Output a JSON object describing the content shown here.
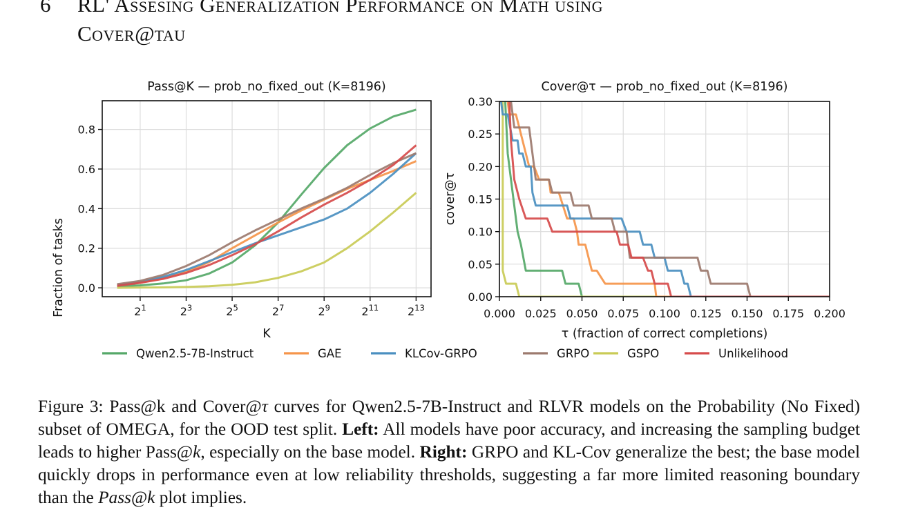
{
  "section": {
    "number": "6",
    "title_line1": "RL' Assesing Generalization Performance on Math using",
    "title_line2_a": "Cover",
    "title_line2_at": "@",
    "title_line2_b": "tau"
  },
  "legend": [
    {
      "name": "Qwen2.5-7B-Instruct",
      "color": "#55a868"
    },
    {
      "name": "GAE",
      "color": "#f5954a"
    },
    {
      "name": "KLCov-GRPO",
      "color": "#4a8fc0"
    },
    {
      "name": "GRPO",
      "color": "#9c7a6e"
    },
    {
      "name": "GSPO",
      "color": "#c9cb56"
    },
    {
      "name": "Unlikelihood",
      "color": "#d64b4b"
    }
  ],
  "chart_data": [
    {
      "type": "line",
      "title": "Pass@K — prob_no_fixed_out (K=8196)",
      "xlabel": "K",
      "ylabel": "Fraction of tasks",
      "xscale": "log2",
      "x_log2": [
        0,
        1,
        2,
        3,
        4,
        5,
        6,
        7,
        8,
        9,
        10,
        11,
        12,
        13
      ],
      "xticks": [
        1,
        3,
        5,
        7,
        9,
        11,
        13
      ],
      "xtick_labels": [
        "2^1",
        "2^3",
        "2^5",
        "2^7",
        "2^9",
        "2^11",
        "2^13"
      ],
      "yticks": [
        0.0,
        0.2,
        0.4,
        0.6,
        0.8
      ],
      "ytick_labels": [
        "0.0",
        "0.2",
        "0.4",
        "0.6",
        "0.8"
      ],
      "xlim_log2": [
        -0.65,
        13.65
      ],
      "ylim": [
        -0.045,
        0.945
      ],
      "grid": true,
      "series": [
        {
          "name": "Qwen2.5-7B-Instruct",
          "values": [
            0.008,
            0.012,
            0.022,
            0.038,
            0.072,
            0.128,
            0.215,
            0.33,
            0.47,
            0.605,
            0.72,
            0.805,
            0.865,
            0.9
          ]
        },
        {
          "name": "GAE",
          "values": [
            0.012,
            0.025,
            0.05,
            0.08,
            0.13,
            0.2,
            0.265,
            0.33,
            0.39,
            0.445,
            0.5,
            0.545,
            0.59,
            0.64
          ]
        },
        {
          "name": "KLCov-GRPO",
          "values": [
            0.013,
            0.03,
            0.055,
            0.09,
            0.135,
            0.18,
            0.225,
            0.265,
            0.305,
            0.345,
            0.4,
            0.48,
            0.575,
            0.68
          ]
        },
        {
          "name": "GRPO",
          "values": [
            0.018,
            0.035,
            0.065,
            0.11,
            0.165,
            0.23,
            0.29,
            0.345,
            0.4,
            0.45,
            0.505,
            0.57,
            0.63,
            0.68
          ]
        },
        {
          "name": "GSPO",
          "values": [
            0.0,
            0.001,
            0.002,
            0.004,
            0.008,
            0.015,
            0.028,
            0.05,
            0.083,
            0.128,
            0.2,
            0.285,
            0.38,
            0.48
          ]
        },
        {
          "name": "Unlikelihood",
          "values": [
            0.01,
            0.025,
            0.045,
            0.075,
            0.115,
            0.165,
            0.22,
            0.285,
            0.355,
            0.42,
            0.48,
            0.545,
            0.62,
            0.72
          ]
        }
      ]
    },
    {
      "type": "line",
      "step": true,
      "title": "Cover@τ — prob_no_fixed_out (K=8196)",
      "xlabel": "τ (fraction of correct completions)",
      "ylabel": "cover@τ",
      "xlim": [
        0.0,
        0.2
      ],
      "ylim": [
        0.0,
        0.3
      ],
      "xticks": [
        0.0,
        0.025,
        0.05,
        0.075,
        0.1,
        0.125,
        0.15,
        0.175,
        0.2
      ],
      "xtick_labels": [
        "0.000",
        "0.025",
        "0.050",
        "0.075",
        "0.100",
        "0.125",
        "0.150",
        "0.175",
        "0.200"
      ],
      "yticks": [
        0.0,
        0.05,
        0.1,
        0.15,
        0.2,
        0.25,
        0.3
      ],
      "ytick_labels": [
        "0.00",
        "0.05",
        "0.10",
        "0.15",
        "0.20",
        "0.25",
        "0.30"
      ],
      "grid": true,
      "series": [
        {
          "name": "Qwen2.5-7B-Instruct",
          "points": [
            [
              0.0035,
              0.3
            ],
            [
              0.005,
              0.22
            ],
            [
              0.008,
              0.16
            ],
            [
              0.011,
              0.1
            ],
            [
              0.013,
              0.08
            ],
            [
              0.016,
              0.04
            ],
            [
              0.038,
              0.04
            ],
            [
              0.04,
              0.02
            ],
            [
              0.048,
              0.02
            ],
            [
              0.05,
              0.0
            ],
            [
              0.2,
              0.0
            ]
          ]
        },
        {
          "name": "GAE",
          "points": [
            [
              0.005,
              0.3
            ],
            [
              0.006,
              0.28
            ],
            [
              0.01,
              0.28
            ],
            [
              0.014,
              0.24
            ],
            [
              0.018,
              0.2
            ],
            [
              0.021,
              0.2
            ],
            [
              0.024,
              0.18
            ],
            [
              0.03,
              0.18
            ],
            [
              0.031,
              0.16
            ],
            [
              0.036,
              0.16
            ],
            [
              0.041,
              0.12
            ],
            [
              0.045,
              0.12
            ],
            [
              0.047,
              0.1
            ],
            [
              0.048,
              0.08
            ],
            [
              0.052,
              0.08
            ],
            [
              0.056,
              0.04
            ],
            [
              0.059,
              0.04
            ],
            [
              0.064,
              0.02
            ],
            [
              0.094,
              0.02
            ],
            [
              0.095,
              0.0
            ],
            [
              0.2,
              0.0
            ]
          ]
        },
        {
          "name": "KLCov-GRPO",
          "points": [
            [
              0.001,
              0.3
            ],
            [
              0.002,
              0.28
            ],
            [
              0.005,
              0.28
            ],
            [
              0.008,
              0.24
            ],
            [
              0.011,
              0.24
            ],
            [
              0.012,
              0.22
            ],
            [
              0.014,
              0.22
            ],
            [
              0.016,
              0.2
            ],
            [
              0.019,
              0.2
            ],
            [
              0.02,
              0.16
            ],
            [
              0.022,
              0.14
            ],
            [
              0.041,
              0.14
            ],
            [
              0.043,
              0.12
            ],
            [
              0.074,
              0.12
            ],
            [
              0.077,
              0.1
            ],
            [
              0.085,
              0.1
            ],
            [
              0.087,
              0.08
            ],
            [
              0.092,
              0.08
            ],
            [
              0.094,
              0.06
            ],
            [
              0.1,
              0.06
            ],
            [
              0.102,
              0.04
            ],
            [
              0.11,
              0.04
            ],
            [
              0.112,
              0.02
            ],
            [
              0.114,
              0.02
            ],
            [
              0.116,
              0.0
            ],
            [
              0.2,
              0.0
            ]
          ]
        },
        {
          "name": "GRPO",
          "points": [
            [
              0.007,
              0.3
            ],
            [
              0.009,
              0.26
            ],
            [
              0.018,
              0.26
            ],
            [
              0.022,
              0.18
            ],
            [
              0.03,
              0.18
            ],
            [
              0.032,
              0.16
            ],
            [
              0.043,
              0.16
            ],
            [
              0.045,
              0.14
            ],
            [
              0.054,
              0.14
            ],
            [
              0.056,
              0.12
            ],
            [
              0.068,
              0.12
            ],
            [
              0.07,
              0.1
            ],
            [
              0.077,
              0.1
            ],
            [
              0.079,
              0.06
            ],
            [
              0.12,
              0.06
            ],
            [
              0.122,
              0.04
            ],
            [
              0.126,
              0.04
            ],
            [
              0.128,
              0.02
            ],
            [
              0.15,
              0.02
            ],
            [
              0.152,
              0.0
            ],
            [
              0.2,
              0.0
            ]
          ]
        },
        {
          "name": "GSPO",
          "points": [
            [
              0.002,
              0.3
            ],
            [
              0.002,
              0.04
            ],
            [
              0.004,
              0.02
            ],
            [
              0.01,
              0.02
            ],
            [
              0.012,
              0.0
            ],
            [
              0.2,
              0.0
            ]
          ]
        },
        {
          "name": "Unlikelihood",
          "points": [
            [
              0.006,
              0.3
            ],
            [
              0.007,
              0.24
            ],
            [
              0.009,
              0.18
            ],
            [
              0.012,
              0.15
            ],
            [
              0.016,
              0.12
            ],
            [
              0.029,
              0.12
            ],
            [
              0.032,
              0.1
            ],
            [
              0.071,
              0.1
            ],
            [
              0.073,
              0.08
            ],
            [
              0.078,
              0.08
            ],
            [
              0.08,
              0.06
            ],
            [
              0.087,
              0.06
            ],
            [
              0.09,
              0.04
            ],
            [
              0.092,
              0.04
            ],
            [
              0.094,
              0.02
            ],
            [
              0.102,
              0.02
            ],
            [
              0.104,
              0.0
            ],
            [
              0.2,
              0.0
            ]
          ]
        }
      ]
    }
  ],
  "caption": {
    "label": "Figure 3:",
    "part1": " Pass@k and Cover@",
    "tau": "τ",
    "part2": " curves for Qwen2.5-7B-Instruct and RLVR models on the Probability (No Fixed) subset of OMEGA, for the OOD test split. ",
    "left_label": "Left:",
    "part3": " All models have poor accuracy, and increasing the sampling budget leads to higher Pass@",
    "k": "k",
    "part4": ", especially on the base model. ",
    "right_label": "Right:",
    "part5": " GRPO and KL-Cov generalize the best; the base model quickly drops in performance even at low reliability thresholds, suggesting a far more limited reasoning boundary than the ",
    "passk": "Pass@k",
    "part6": " plot implies."
  }
}
